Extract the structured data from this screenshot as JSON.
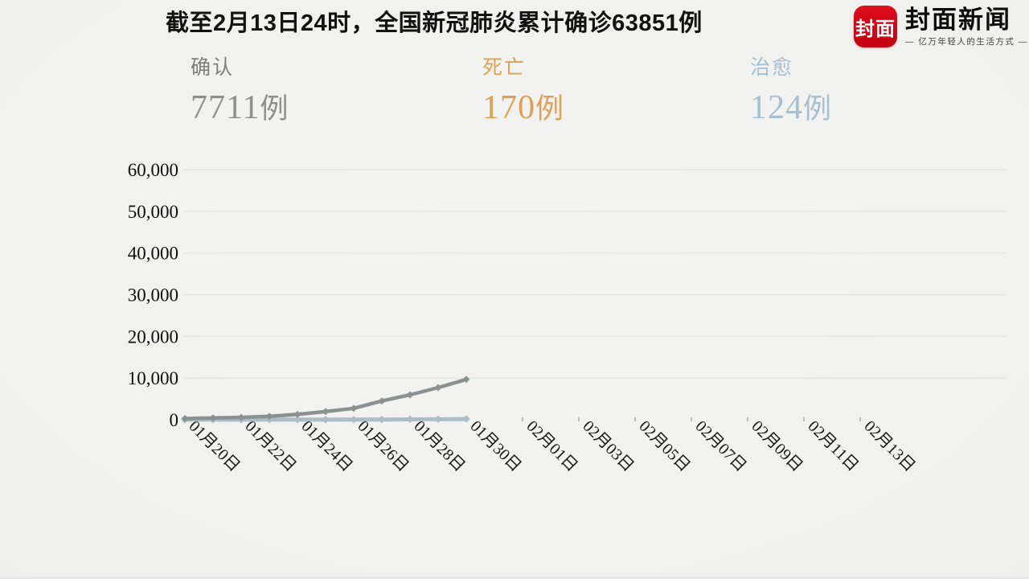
{
  "header": {
    "title": "截至2月13日24时，全国新冠肺炎累计确诊63851例"
  },
  "logo": {
    "icon_text": "封面",
    "name": "封面新闻",
    "tagline": "— 亿万年轻人的生活方式 —",
    "brand_color": "#cf0814"
  },
  "stats": [
    {
      "label": "确认",
      "value": "7711",
      "unit": "例",
      "label_color": "#7d7d7d",
      "value_color": "#8f8f8f"
    },
    {
      "label": "死亡",
      "value": "170",
      "unit": "例",
      "label_color": "#dfa055",
      "value_color": "#dfa055"
    },
    {
      "label": "治愈",
      "value": "124",
      "unit": "例",
      "label_color": "#a7bfce",
      "value_color": "#a7bfce"
    }
  ],
  "chart_data": {
    "type": "line",
    "title": "截至2月13日24时，全国新冠肺炎累计确诊63851例",
    "x_axis": {
      "tick_labels": [
        "01月20日",
        "01月22日",
        "01月24日",
        "01月26日",
        "01月28日",
        "01月30日",
        "02月01日",
        "02月03日",
        "02月05日",
        "02月07日",
        "02月09日",
        "02月11日",
        "02月13日"
      ],
      "days_between_ticks": 2,
      "note": "data points plotted daily; animation frame shows lines drawn only through 01月30日"
    },
    "y_axis": {
      "min": 0,
      "max": 60000,
      "tick_step": 10000,
      "tick_labels": [
        "0",
        "10,000",
        "20,000",
        "30,000",
        "40,000",
        "50,000",
        "60,000"
      ]
    },
    "grid": true,
    "legend_position": "none",
    "series": [
      {
        "name": "确认",
        "color": "#8b9191",
        "start_date": "01月20日",
        "values": [
          291,
          440,
          571,
          830,
          1287,
          1975,
          2744,
          4515,
          5974,
          7711,
          9692
        ]
      },
      {
        "name": "死亡",
        "color": "#dfa055",
        "start_date": "01月20日",
        "values": [
          6,
          9,
          17,
          25,
          41,
          56,
          80,
          106,
          132,
          170,
          213
        ]
      },
      {
        "name": "治愈",
        "color": "#a9bec6",
        "start_date": "01月20日",
        "values": [
          25,
          25,
          28,
          34,
          38,
          49,
          51,
          60,
          103,
          124,
          171
        ]
      }
    ]
  }
}
